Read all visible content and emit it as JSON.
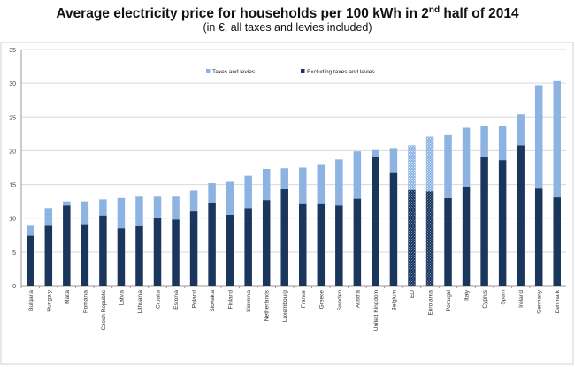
{
  "chart_data": {
    "type": "bar",
    "stacked": true,
    "title_main": "Average electricity price for households per 100 kWh in 2",
    "title_sup": "nd",
    "title_end": " half of 2014",
    "subtitle": "(in €, all taxes and levies included)",
    "ylim": [
      0,
      35
    ],
    "yticks": [
      0,
      5,
      10,
      15,
      20,
      25,
      30,
      35
    ],
    "grid": true,
    "legend_placement": "top",
    "categories": [
      "Bulgaria",
      "Hungary",
      "Malta",
      "Romania",
      "Czech Republic",
      "Latvia",
      "Lithuania",
      "Croatia",
      "Estonia",
      "Poland",
      "Slovakia",
      "Finland",
      "Slovenia",
      "Netherlands",
      "Luxembourg",
      "France",
      "Greece",
      "Sweden",
      "Austria",
      "United Kingdom",
      "Belgium",
      "EU",
      "Euro area",
      "Portugal",
      "Italy",
      "Cyprus",
      "Spain",
      "Ireland",
      "Germany",
      "Denmark"
    ],
    "hatched_categories": [
      "EU",
      "Euro area"
    ],
    "series": [
      {
        "name": "Excluding taxes and levies",
        "color": "#1b365d",
        "values": [
          7.4,
          9.0,
          11.9,
          9.1,
          10.4,
          8.5,
          8.8,
          10.1,
          9.8,
          11.0,
          12.3,
          10.5,
          11.5,
          12.7,
          14.3,
          12.1,
          12.1,
          11.9,
          12.9,
          19.1,
          16.7,
          14.2,
          14.0,
          13.0,
          14.6,
          19.1,
          18.6,
          20.8,
          14.4,
          13.1
        ]
      },
      {
        "name": "Taxes and levies",
        "color": "#8db3e2",
        "values": [
          1.6,
          2.5,
          0.6,
          3.4,
          2.4,
          4.5,
          4.4,
          3.1,
          3.4,
          3.1,
          2.9,
          4.9,
          4.8,
          4.6,
          3.1,
          5.4,
          5.8,
          6.8,
          7.0,
          1.0,
          3.7,
          6.6,
          8.1,
          9.3,
          8.8,
          4.5,
          5.1,
          4.6,
          15.3,
          17.2
        ]
      }
    ]
  }
}
